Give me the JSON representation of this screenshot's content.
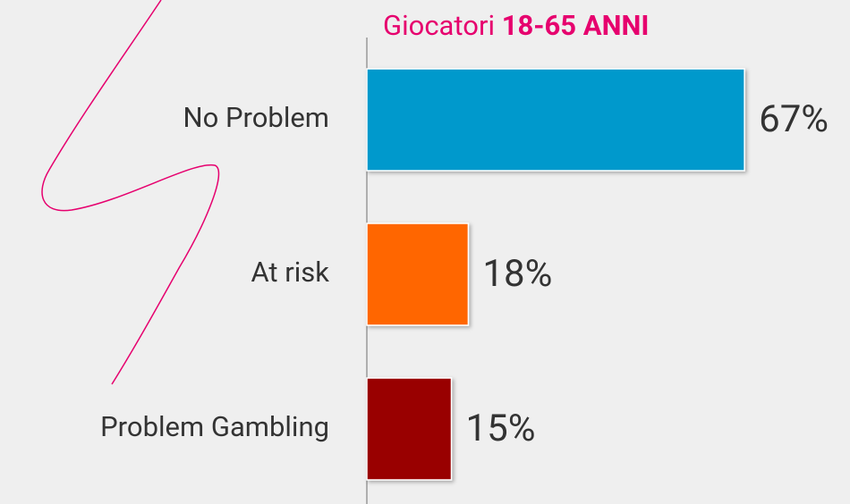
{
  "chart_data": {
    "type": "bar",
    "orientation": "horizontal",
    "title_parts": [
      "Giocatori",
      "18-65 ANNI"
    ],
    "categories": [
      "No Problem",
      "At risk",
      "Problem Gambling"
    ],
    "values": [
      67,
      18,
      15
    ],
    "value_labels": [
      "67%",
      "18%",
      "15%"
    ],
    "colors": [
      "#0099cc",
      "#ff6600",
      "#990000"
    ]
  }
}
